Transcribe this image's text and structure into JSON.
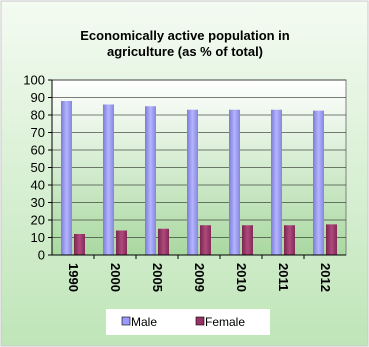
{
  "chart_data": {
    "type": "bar",
    "title": "Economically active population in agriculture (as % of total)",
    "title_lines": [
      "Economically active population in",
      "agriculture (as % of total)"
    ],
    "categories": [
      "1990",
      "2000",
      "2005",
      "2009",
      "2010",
      "2011",
      "2012"
    ],
    "series": [
      {
        "name": "Male",
        "values": [
          88,
          86,
          85,
          83,
          83,
          83,
          82.5
        ]
      },
      {
        "name": "Female",
        "values": [
          12,
          14,
          15,
          17,
          17,
          17,
          17.5
        ]
      }
    ],
    "ylim": [
      0,
      100
    ],
    "yticks": [
      "0",
      "10",
      "20",
      "30",
      "40",
      "50",
      "60",
      "70",
      "80",
      "90",
      "100"
    ],
    "grid": true,
    "legend_position": "bottom",
    "colors": {
      "Male": "#9999ff",
      "Female": "#993366",
      "background_top": "#f4fbf2",
      "background_bottom": "#bfe5b8",
      "plot_top": "#ffffff",
      "plot_bottom": "#a9d8a0"
    }
  }
}
